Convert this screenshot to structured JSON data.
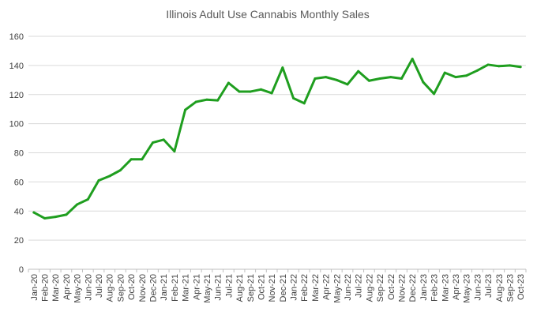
{
  "chart_data": {
    "type": "line",
    "title": "Illinois Adult Use Cannabis Monthly Sales",
    "xlabel": "",
    "ylabel": "",
    "ylim": [
      0,
      160
    ],
    "yticks": [
      0,
      20,
      40,
      60,
      80,
      100,
      120,
      140,
      160
    ],
    "grid": true,
    "legend": "none",
    "categories": [
      "Jan-20",
      "Feb-20",
      "Mar-20",
      "Apr-20",
      "May-20",
      "Jun-20",
      "Jul-20",
      "Aug-20",
      "Sep-20",
      "Oct-20",
      "Nov-20",
      "Dec-20",
      "Jan-21",
      "Feb-21",
      "Mar-21",
      "Apr-21",
      "May-21",
      "Jun-21",
      "Jul-21",
      "Aug-21",
      "Sep-21",
      "Oct-21",
      "Nov-21",
      "Dec-21",
      "Jan-22",
      "Feb-22",
      "Mar-22",
      "Apr-22",
      "May-22",
      "Jun-22",
      "Jul-22",
      "Aug-22",
      "Sep-22",
      "Oct-22",
      "Nov-22",
      "Dec-22",
      "Jan-23",
      "Feb-23",
      "Mar-23",
      "Apr-23",
      "May-23",
      "Jun-23",
      "Jul-23",
      "Aug-23",
      "Sep-23",
      "Oct-23"
    ],
    "series": [
      {
        "name": "Monthly Sales",
        "color": "#1f9e1f",
        "values": [
          39,
          35,
          36,
          37.5,
          44.5,
          48,
          61,
          64,
          68,
          75.5,
          75.5,
          87,
          89,
          81,
          109.5,
          115,
          116.5,
          116,
          128,
          122,
          122,
          123.5,
          121,
          138.5,
          117.5,
          114,
          131,
          132,
          130,
          127,
          136,
          129.5,
          131,
          132,
          131,
          144.5,
          128.5,
          120.5,
          135,
          132,
          133,
          136.5,
          140.5,
          139.5,
          140,
          139
        ]
      }
    ]
  }
}
